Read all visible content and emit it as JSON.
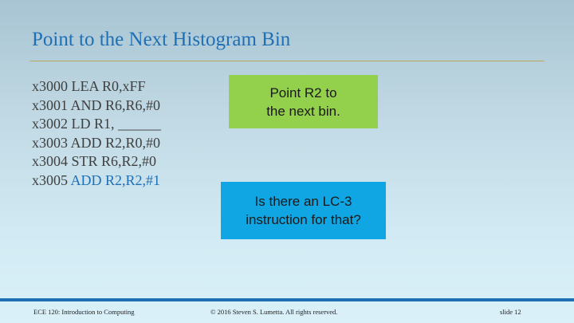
{
  "slide": {
    "title": "Point to the Next Histogram Bin",
    "code_lines": [
      {
        "prefix": "x3000 LEA R0,xFF",
        "highlight": ""
      },
      {
        "prefix": "x3001 AND R6,R6,#0",
        "highlight": ""
      },
      {
        "prefix": "x3002 LD R1, ______",
        "highlight": ""
      },
      {
        "prefix": "x3003 ADD R2,R0,#0",
        "highlight": ""
      },
      {
        "prefix": "x3004 STR R6,R2,#0",
        "highlight": ""
      },
      {
        "prefix": "x3005 ",
        "highlight": "ADD R2,R2,#1"
      }
    ],
    "callout_green": "Point R2 to\nthe next bin.",
    "callout_blue": "Is there an LC-3\ninstruction for that?"
  },
  "footer": {
    "course": "ECE 120: Introduction to Computing",
    "copyright": "© 2016 Steven S. Lumetta.  All rights reserved.",
    "slide_number": "slide 12"
  },
  "colors": {
    "title": "#1f6fb5",
    "highlight": "#1f6fb5",
    "green_box": "#93d04b",
    "blue_box": "#10a5e3",
    "footer_bar": "#1f6fb5"
  }
}
